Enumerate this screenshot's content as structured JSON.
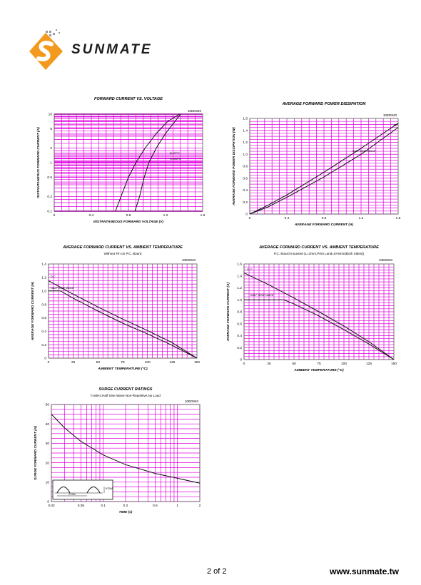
{
  "brand": {
    "name": "SUNMATE",
    "logo_icon": "sunmate-s-logo-icon",
    "colors": {
      "orange": "#F39A1E",
      "gray": "#8A8A8A"
    }
  },
  "footer": {
    "page": "2 of 2",
    "url": "www.sunmate.tw"
  },
  "grid_color": "#E000E0",
  "chart_data": [
    {
      "id": "fv",
      "type": "line",
      "title": "FORWARD CURRENT VS. VOLTAGE",
      "subtitle": "",
      "part": "10ED840",
      "xlabel": "INSTANTANEOUS FORWARD VOLTAGE (V)",
      "ylabel": "INSTANTANEOUS FORWARD CURRENT (A)",
      "x_scale": "linear",
      "y_scale": "log",
      "xlim": [
        0,
        1.6
      ],
      "ylim": [
        0.1,
        10
      ],
      "x_ticks": [
        0,
        0.4,
        0.8,
        1.2,
        1.6
      ],
      "x_tick_labels": [
        "0",
        "0.4",
        "0.8",
        "1.2",
        "1.6"
      ],
      "y_ticks": [
        0.1,
        0.2,
        0.5,
        1,
        2,
        5,
        10
      ],
      "y_tick_labels": [
        "0.1",
        "0.2",
        "0.5",
        "1",
        "2",
        "5",
        "10"
      ],
      "grid": true,
      "series": [
        {
          "name": "Tj=25°C",
          "x": [
            0.87,
            0.92,
            0.97,
            1.02,
            1.1,
            1.2,
            1.3,
            1.36
          ],
          "y": [
            0.1,
            0.2,
            0.5,
            1,
            2,
            4,
            7,
            10
          ]
        },
        {
          "name": "Tj=150°C",
          "x": [
            0.66,
            0.72,
            0.8,
            0.88,
            0.98,
            1.1,
            1.22,
            1.35
          ],
          "y": [
            0.1,
            0.2,
            0.5,
            1,
            2,
            4,
            7,
            10
          ]
        }
      ],
      "labels": [
        {
          "text": "Tj=25°C",
          "x": 1.24,
          "y": 1.5
        },
        {
          "text": "Tj=150°C",
          "x": 1.24,
          "y": 1.15
        }
      ]
    },
    {
      "id": "pd",
      "type": "line",
      "title": "AVERAGE FORWARD POWER DISSIPATION",
      "subtitle": "",
      "part": "10ED840",
      "xlabel": "AVERAGE FORWARD CURRENT (A)",
      "ylabel": "AVERAGE FORWARD POWER DISSIPATION (W)",
      "x_scale": "linear",
      "y_scale": "linear",
      "xlim": [
        0,
        1.6
      ],
      "ylim": [
        0,
        1.6
      ],
      "x_ticks": [
        0,
        0.4,
        0.8,
        1.2,
        1.6
      ],
      "x_tick_labels": [
        "0",
        "0.4",
        "0.8",
        "1.2",
        "1.6"
      ],
      "y_ticks": [
        0,
        0.2,
        0.4,
        0.6,
        0.8,
        1.0,
        1.2,
        1.4,
        1.6
      ],
      "y_tick_labels": [
        "0",
        "0.2",
        "0.4",
        "0.6",
        "0.8",
        "1.0",
        "1.2",
        "1.4",
        "1.6"
      ],
      "grid": true,
      "series": [
        {
          "name": "DC",
          "x": [
            0,
            0.2,
            0.4,
            0.8,
            1.2,
            1.6
          ],
          "y": [
            0,
            0.12,
            0.28,
            0.62,
            1.0,
            1.45
          ]
        },
        {
          "name": "HALF SINE WAVE",
          "x": [
            0,
            0.2,
            0.4,
            0.8,
            1.2,
            1.6
          ],
          "y": [
            0,
            0.15,
            0.32,
            0.7,
            1.1,
            1.52
          ]
        }
      ],
      "labels": [
        {
          "text": "DC",
          "x": 1.55,
          "y": 1.47
        },
        {
          "text": "HALF SINE WAVE",
          "x": 1.1,
          "y": 1.04
        }
      ]
    },
    {
      "id": "ta1",
      "type": "line",
      "title": "AVERAGE FORWARD CURRENT VS. AMBIENT TEMPERATURE",
      "subtitle": "Without Fin on P.C. Board",
      "part": "10ED840",
      "xlabel": "AMBIENT TEMPERATURE (°C)",
      "ylabel": "AVERAGE FORWARD CURRENT (A)",
      "x_scale": "linear",
      "y_scale": "linear",
      "xlim": [
        0,
        150
      ],
      "ylim": [
        0,
        1.4
      ],
      "x_ticks": [
        0,
        25,
        50,
        75,
        100,
        125,
        150
      ],
      "x_tick_labels": [
        "0",
        "25",
        "50",
        "75",
        "100",
        "125",
        "150"
      ],
      "y_ticks": [
        0,
        0.2,
        0.4,
        0.6,
        0.8,
        1.0,
        1.2,
        1.4
      ],
      "y_tick_labels": [
        "0",
        "0.2",
        "0.4",
        "0.6",
        "0.8",
        "1.0",
        "1.2",
        "1.4"
      ],
      "grid": true,
      "series": [
        {
          "name": "DC",
          "x": [
            0,
            25,
            50,
            75,
            100,
            125,
            150
          ],
          "y": [
            1.15,
            0.95,
            0.76,
            0.58,
            0.41,
            0.23,
            0
          ]
        },
        {
          "name": "HALF SINE WAVE",
          "x": [
            0,
            12,
            25,
            50,
            75,
            100,
            125,
            150
          ],
          "y": [
            1.0,
            1.0,
            0.89,
            0.7,
            0.52,
            0.36,
            0.19,
            0
          ]
        }
      ],
      "labels": [
        {
          "text": "D.C.",
          "x": 2,
          "y": 1.2
        },
        {
          "text": "HALF SINE WAVE",
          "x": 2,
          "y": 1.03
        }
      ]
    },
    {
      "id": "ta2",
      "type": "line",
      "title": "AVERAGE FORWARD CURRENT VS. AMBIENT TEMPERATURE",
      "subtitle": "P.C. Board mounted (L=3mm,Print Land=5×5mm(Both Sides))",
      "part": "10ED840",
      "xlabel": "AMBIENT TEMPERATURE (°C)",
      "ylabel": "AVERAGE FORWARD CURRENT (A)",
      "x_scale": "linear",
      "y_scale": "linear",
      "xlim": [
        0,
        150
      ],
      "ylim": [
        0,
        1.6
      ],
      "x_ticks": [
        0,
        25,
        50,
        75,
        100,
        125,
        150
      ],
      "x_tick_labels": [
        "0",
        "25",
        "50",
        "75",
        "100",
        "125",
        "150"
      ],
      "y_ticks": [
        0,
        0.2,
        0.4,
        0.6,
        0.8,
        1.0,
        1.2,
        1.4,
        1.6
      ],
      "y_tick_labels": [
        "0",
        "0.2",
        "0.4",
        "0.6",
        "0.8",
        "1.0",
        "1.2",
        "1.4",
        "1.6"
      ],
      "grid": true,
      "series": [
        {
          "name": "DC",
          "x": [
            0,
            25,
            50,
            75,
            100,
            125,
            150
          ],
          "y": [
            1.45,
            1.25,
            1.03,
            0.8,
            0.56,
            0.3,
            0
          ]
        },
        {
          "name": "HALF SINE WAVE",
          "x": [
            0,
            40,
            50,
            75,
            100,
            125,
            150
          ],
          "y": [
            1.0,
            1.0,
            0.93,
            0.73,
            0.5,
            0.26,
            0
          ]
        }
      ],
      "labels": [
        {
          "text": "D.C.",
          "x": 3,
          "y": 1.49
        },
        {
          "text": "HALF SINE WAVE",
          "x": 6,
          "y": 1.06
        }
      ]
    },
    {
      "id": "surge",
      "type": "line",
      "title": "SURGE CURRENT RATINGS",
      "subtitle": "f=50Hz,Half Sine Wave Non-Repetitive,No Load",
      "part": "10ED840",
      "xlabel": "TIME (s)",
      "ylabel": "SURGE FORWARD CURRENT (A)",
      "x_scale": "log",
      "y_scale": "linear",
      "xlim": [
        0.02,
        2
      ],
      "ylim": [
        0,
        50
      ],
      "x_ticks": [
        0.02,
        0.05,
        0.1,
        0.2,
        0.5,
        1,
        2
      ],
      "x_tick_labels": [
        "0.02",
        "0.05",
        "0.1",
        "0.2",
        "0.5",
        "1",
        "2"
      ],
      "y_ticks": [
        0,
        10,
        20,
        30,
        40,
        50
      ],
      "y_tick_labels": [
        "0",
        "10",
        "20",
        "30",
        "40",
        "50"
      ],
      "grid": true,
      "series": [
        {
          "name": "IFSM",
          "x": [
            0.02,
            0.03,
            0.05,
            0.1,
            0.2,
            0.5,
            1,
            2
          ],
          "y": [
            45,
            38,
            31,
            24,
            19,
            14.5,
            12,
            9.5
          ]
        }
      ],
      "inset": {
        "label_period": "0.02s",
        "label_peak": "IFSM"
      }
    }
  ]
}
